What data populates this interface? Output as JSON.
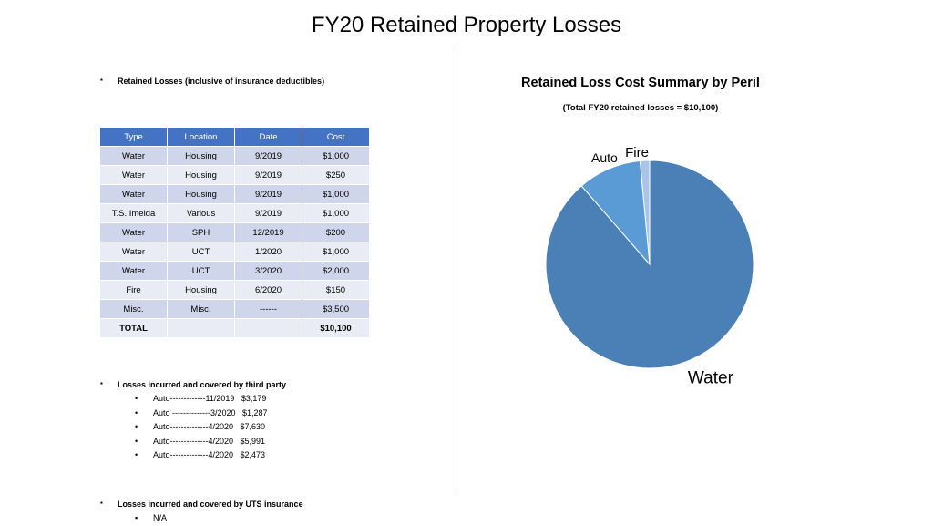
{
  "title": "FY20 Retained Property Losses",
  "sections": {
    "retained": {
      "bullet": "▪",
      "label": "Retained Losses (inclusive of insurance deductibles)"
    },
    "third_party": {
      "bullet": "▪",
      "label": "Losses incurred and covered by third party",
      "items": [
        "Auto-------------11/2019   $3,179",
        "Auto --------------3/2020   $1,287",
        "Auto--------------4/2020   $7,630",
        "Auto--------------4/2020   $5,991",
        "Auto--------------4/2020   $2,473"
      ]
    },
    "uts": {
      "bullet": "▪",
      "label": "Losses incurred and covered by UTS insurance",
      "items": [
        "N/A"
      ]
    }
  },
  "sub_bullet": "•",
  "table": {
    "headers": [
      "Type",
      "Location",
      "Date",
      "Cost"
    ],
    "rows": [
      [
        "Water",
        "Housing",
        "9/2019",
        "$1,000"
      ],
      [
        "Water",
        "Housing",
        "9/2019",
        "$250"
      ],
      [
        "Water",
        "Housing",
        "9/2019",
        "$1,000"
      ],
      [
        "T.S. Imelda",
        "Various",
        "9/2019",
        "$1,000"
      ],
      [
        "Water",
        "SPH",
        "12/2019",
        "$200"
      ],
      [
        "Water",
        "UCT",
        "1/2020",
        "$1,000"
      ],
      [
        "Water",
        "UCT",
        "3/2020",
        "$2,000"
      ],
      [
        "Fire",
        "Housing",
        "6/2020",
        "$150"
      ],
      [
        "Misc.",
        "Misc.",
        "------",
        "$3,500"
      ]
    ],
    "total_row": [
      "TOTAL",
      "",
      "",
      "$10,100"
    ]
  },
  "chart_data": {
    "type": "pie",
    "title": "Retained Loss Cost Summary by Peril",
    "subtitle": "(Total FY20 retained losses = $10,100)",
    "categories": [
      "Fire",
      "Water",
      "Auto"
    ],
    "values": [
      150,
      8950,
      1000
    ],
    "colors": [
      "#a9c4e8",
      "#4a80b5",
      "#5b9bd5"
    ],
    "legend": "none"
  }
}
